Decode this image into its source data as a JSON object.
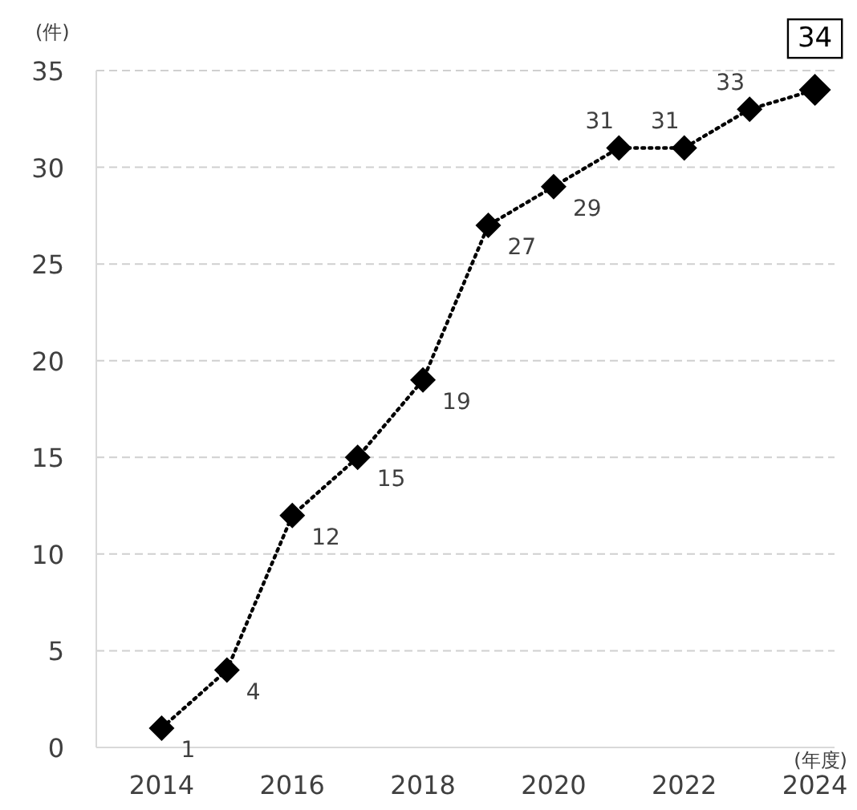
{
  "chart_data": {
    "type": "line",
    "xlabel": "(年度)",
    "ylabel": "(件)",
    "x": [
      2014,
      2015,
      2016,
      2017,
      2018,
      2019,
      2020,
      2021,
      2022,
      2023,
      2024
    ],
    "series": [
      {
        "color": "#000000",
        "values": [
          1,
          4,
          12,
          15,
          19,
          27,
          29,
          31,
          31,
          33,
          34
        ]
      }
    ],
    "xlim": [
      2013,
      2024.3
    ],
    "ylim": [
      0,
      35
    ],
    "xticks": [
      2014,
      2016,
      2018,
      2020,
      2022,
      2024
    ],
    "yticks": [
      0,
      5,
      10,
      15,
      20,
      25,
      30,
      35
    ],
    "grid": "y",
    "marker": "diamond",
    "line_style": "dotted",
    "data_labels": true
  }
}
